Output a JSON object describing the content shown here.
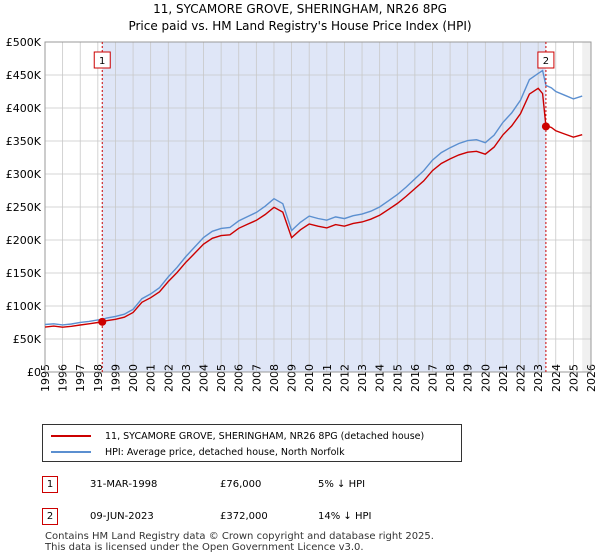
{
  "chart_data": {
    "type": "line",
    "title": "11, SYCAMORE GROVE, SHERINGHAM, NR26 8PG",
    "subtitle": "Price paid vs. HM Land Registry's House Price Index (HPI)",
    "x_tick_labels": [
      "1995",
      "1996",
      "1997",
      "1998",
      "1999",
      "2000",
      "2001",
      "2002",
      "2003",
      "2004",
      "2005",
      "2006",
      "2007",
      "2008",
      "2009",
      "2010",
      "2011",
      "2012",
      "2013",
      "2014",
      "2015",
      "2016",
      "2017",
      "2018",
      "2019",
      "2020",
      "2021",
      "2022",
      "2023",
      "2024",
      "2025",
      "2026"
    ],
    "y_tick_labels": [
      "£0",
      "£50K",
      "£100K",
      "£150K",
      "£200K",
      "£250K",
      "£300K",
      "£350K",
      "£400K",
      "£450K",
      "£500K"
    ],
    "xlim": [
      1995,
      2026
    ],
    "ylim": [
      0,
      500000
    ],
    "series": [
      {
        "name": "HPI: Average price, detached house, North Norfolk",
        "color": "#5b8fd0",
        "x": [
          1995.0,
          1995.5,
          1996.0,
          1996.5,
          1997.0,
          1997.5,
          1998.0,
          1998.25,
          1998.5,
          1999.0,
          1999.5,
          2000.0,
          2000.5,
          2001.0,
          2001.5,
          2002.0,
          2002.5,
          2003.0,
          2003.5,
          2004.0,
          2004.5,
          2005.0,
          2005.5,
          2006.0,
          2006.5,
          2007.0,
          2007.5,
          2008.0,
          2008.5,
          2009.0,
          2009.5,
          2010.0,
          2010.5,
          2011.0,
          2011.5,
          2012.0,
          2012.5,
          2013.0,
          2013.5,
          2014.0,
          2014.5,
          2015.0,
          2015.5,
          2016.0,
          2016.5,
          2017.0,
          2017.5,
          2018.0,
          2018.5,
          2019.0,
          2019.5,
          2020.0,
          2020.5,
          2021.0,
          2021.5,
          2022.0,
          2022.5,
          2023.0,
          2023.25,
          2023.44,
          2023.75,
          2024.0,
          2024.5,
          2025.0,
          2025.5
        ],
        "y": [
          72000,
          70000,
          69000,
          71000,
          74000,
          76000,
          79000,
          80000,
          83000,
          86000,
          90000,
          98000,
          108000,
          116000,
          126000,
          143000,
          158000,
          175000,
          190000,
          205000,
          215000,
          220000,
          222000,
          226000,
          233000,
          240000,
          250000,
          262000,
          255000,
          215000,
          228000,
          238000,
          235000,
          233000,
          232000,
          230000,
          235000,
          238000,
          243000,
          250000,
          260000,
          270000,
          282000,
          295000,
          308000,
          318000,
          330000,
          338000,
          345000,
          350000,
          352000,
          348000,
          360000,
          380000,
          395000,
          415000,
          440000,
          450000,
          455000,
          433000,
          430000,
          425000,
          420000,
          415000,
          418000
        ]
      },
      {
        "name": "11, SYCAMORE GROVE, SHERINGHAM, NR26 8PG (detached house)",
        "color": "#cc0000",
        "x": [
          1995.0,
          1995.5,
          1996.0,
          1996.5,
          1997.0,
          1997.5,
          1998.0,
          1998.25,
          1998.5,
          1999.0,
          1999.5,
          2000.0,
          2000.5,
          2001.0,
          2001.5,
          2002.0,
          2002.5,
          2003.0,
          2003.5,
          2004.0,
          2004.5,
          2005.0,
          2005.5,
          2006.0,
          2006.5,
          2007.0,
          2007.5,
          2008.0,
          2008.5,
          2009.0,
          2009.5,
          2010.0,
          2010.5,
          2011.0,
          2011.5,
          2012.0,
          2012.5,
          2013.0,
          2013.5,
          2014.0,
          2014.5,
          2015.0,
          2015.5,
          2016.0,
          2016.5,
          2017.0,
          2017.5,
          2018.0,
          2018.5,
          2019.0,
          2019.5,
          2020.0,
          2020.5,
          2021.0,
          2021.5,
          2022.0,
          2022.5,
          2023.0,
          2023.25,
          2023.44,
          2023.75,
          2024.0,
          2024.5,
          2025.0,
          2025.5
        ],
        "y": [
          68000,
          66500,
          65500,
          67500,
          70000,
          72500,
          75000,
          76000,
          79000,
          81700,
          85500,
          93100,
          102600,
          110200,
          119700,
          135900,
          150100,
          166300,
          180500,
          194800,
          204300,
          209000,
          210900,
          214700,
          221400,
          228000,
          237500,
          248900,
          242300,
          204300,
          216600,
          226100,
          223300,
          221400,
          220400,
          218500,
          223300,
          226100,
          230900,
          237500,
          247000,
          256500,
          267900,
          280300,
          292600,
          302100,
          313500,
          321100,
          327800,
          332500,
          334400,
          330600,
          342000,
          361000,
          375300,
          394300,
          418000,
          427500,
          420000,
          372000,
          369800,
          365500,
          361200,
          356900,
          359500
        ]
      }
    ],
    "markers": [
      {
        "label": "1",
        "x": 1998.25,
        "y": 76000
      },
      {
        "label": "2",
        "x": 2023.44,
        "y": 372000
      }
    ],
    "forecast_start": 2025.5
  },
  "legend": {
    "property_label": "11, SYCAMORE GROVE, SHERINGHAM, NR26 8PG (detached house)",
    "hpi_label": "HPI: Average price, detached house, North Norfolk"
  },
  "sales": [
    {
      "num": "1",
      "date": "31-MAR-1998",
      "price": "£76,000",
      "hpi": "5% ↓ HPI"
    },
    {
      "num": "2",
      "date": "09-JUN-2023",
      "price": "£372,000",
      "hpi": "14% ↓ HPI"
    }
  ],
  "footer": {
    "line1": "Contains HM Land Registry data © Crown copyright and database right 2025.",
    "line2": "This data is licensed under the Open Government Licence v3.0."
  },
  "colors": {
    "property_line": "#cc0000",
    "hpi_line": "#5b8fd0",
    "shade": "#dfe6f7",
    "grid": "#c8c8c8"
  }
}
